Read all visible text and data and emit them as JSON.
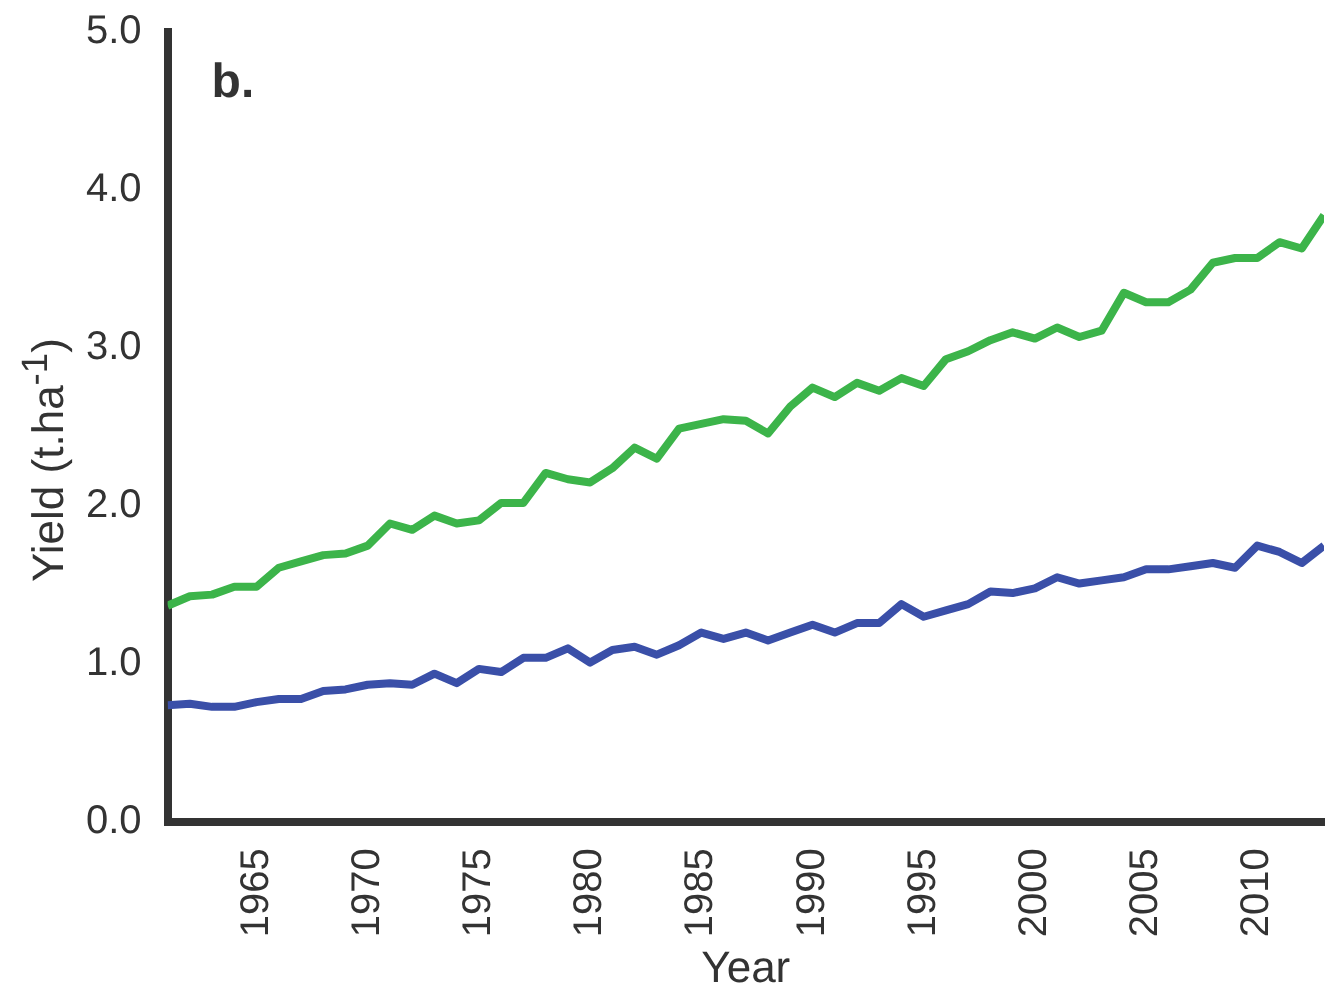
{
  "chart_data": {
    "type": "line",
    "xlabel": "Year",
    "ylabel": "Yield (t.ha$^{-1}$)",
    "annotations": [
      "b."
    ],
    "x": [
      1961,
      1962,
      1963,
      1964,
      1965,
      1966,
      1967,
      1968,
      1969,
      1970,
      1971,
      1972,
      1973,
      1974,
      1975,
      1976,
      1977,
      1978,
      1979,
      1980,
      1981,
      1982,
      1983,
      1984,
      1985,
      1986,
      1987,
      1988,
      1989,
      1990,
      1991,
      1992,
      1993,
      1994,
      1995,
      1996,
      1997,
      1998,
      1999,
      2000,
      2001,
      2002,
      2003,
      2004,
      2005,
      2006,
      2007,
      2008,
      2009,
      2010,
      2011,
      2012,
      2013
    ],
    "series": [
      {
        "color": "#3cb44a",
        "values": [
          1.37,
          1.43,
          1.44,
          1.49,
          1.49,
          1.61,
          1.65,
          1.69,
          1.7,
          1.75,
          1.89,
          1.85,
          1.94,
          1.89,
          1.91,
          2.02,
          2.02,
          2.21,
          2.17,
          2.15,
          2.24,
          2.37,
          2.3,
          2.49,
          2.52,
          2.55,
          2.54,
          2.46,
          2.63,
          2.75,
          2.69,
          2.78,
          2.73,
          2.81,
          2.76,
          2.93,
          2.98,
          3.05,
          3.1,
          3.06,
          3.13,
          3.07,
          3.11,
          3.35,
          3.29,
          3.29,
          3.37,
          3.54,
          3.57,
          3.57,
          3.67,
          3.63,
          3.84
        ]
      },
      {
        "color": "#3a4fa8",
        "values": [
          0.74,
          0.75,
          0.73,
          0.73,
          0.76,
          0.78,
          0.78,
          0.83,
          0.84,
          0.87,
          0.88,
          0.87,
          0.94,
          0.88,
          0.97,
          0.95,
          1.04,
          1.04,
          1.1,
          1.01,
          1.09,
          1.11,
          1.06,
          1.12,
          1.2,
          1.16,
          1.2,
          1.15,
          1.2,
          1.25,
          1.2,
          1.26,
          1.26,
          1.38,
          1.3,
          1.34,
          1.38,
          1.46,
          1.45,
          1.48,
          1.55,
          1.51,
          1.53,
          1.55,
          1.6,
          1.6,
          1.62,
          1.64,
          1.61,
          1.75,
          1.71,
          1.64,
          1.75
        ]
      }
    ],
    "xlim": [
      1961,
      2013
    ],
    "xticks": [
      1965,
      1970,
      1975,
      1980,
      1985,
      1990,
      1995,
      2000,
      2005,
      2010
    ],
    "ylim": [
      0,
      5
    ],
    "yticks": [
      {
        "value": 0,
        "label": "0.0"
      },
      {
        "value": 1,
        "label": "1.0"
      },
      {
        "value": 2,
        "label": "2.0"
      },
      {
        "value": 3,
        "label": "3.0"
      },
      {
        "value": 4,
        "label": "4.0"
      },
      {
        "value": 5,
        "label": "5.0"
      }
    ],
    "grid": false,
    "legend": false,
    "marker": "none",
    "line_style": "solid"
  }
}
